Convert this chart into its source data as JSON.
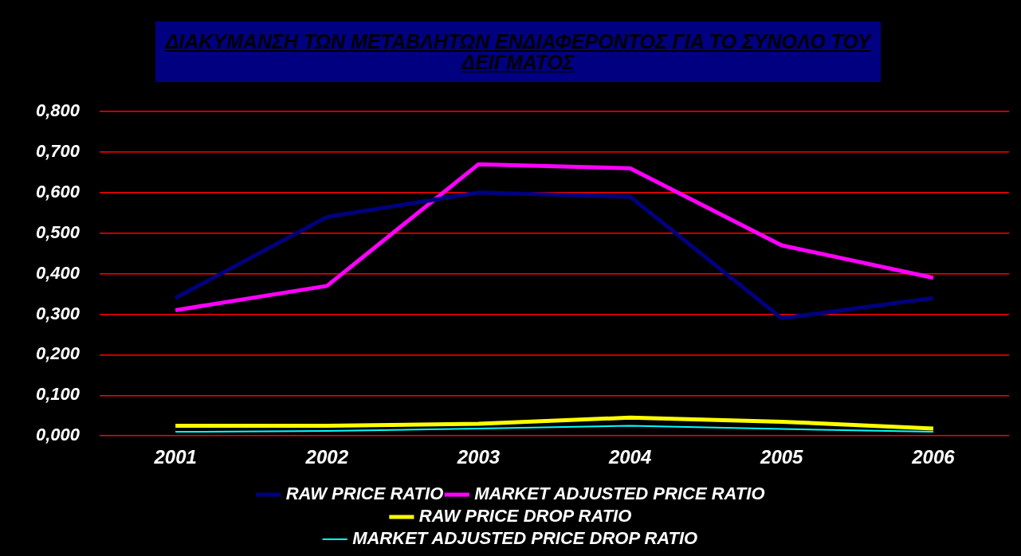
{
  "chart_data": {
    "type": "line",
    "title": "ΔΙΑΚΥΜΑΝΣΗ  ΤΩΝ ΜΕΤΑΒΛΗΤΩΝ ΕΝΔΙΑΦΕΡΟΝΤΟΣ ΓΙΑ ΤΟ ΣΥΝΟΛΟ ΤΟΥ ΔΕΙΓΜΑΤΟΣ",
    "categories": [
      "2001",
      "2002",
      "2003",
      "2004",
      "2005",
      "2006"
    ],
    "series": [
      {
        "name": "RAW PRICE RATIO",
        "color": "#000080",
        "values": [
          0.34,
          0.54,
          0.6,
          0.59,
          0.29,
          0.34
        ]
      },
      {
        "name": "MARKET ADJUSTED PRICE RATIO",
        "color": "#ff00ff",
        "values": [
          0.31,
          0.37,
          0.67,
          0.66,
          0.47,
          0.39
        ]
      },
      {
        "name": "RAW PRICE DROP RATIO",
        "color": "#ffff00",
        "values": [
          0.025,
          0.025,
          0.03,
          0.045,
          0.035,
          0.018
        ]
      },
      {
        "name": "MARKET ADJUSTED PRICE DROP RATIO",
        "color": "#00ffff",
        "values": [
          0.01,
          0.012,
          0.018,
          0.025,
          0.017,
          0.01
        ]
      }
    ],
    "ylim": [
      0,
      0.8
    ],
    "yticks": [
      {
        "value": 0,
        "label": "0,000"
      },
      {
        "value": 0.1,
        "label": "0,100"
      },
      {
        "value": 0.2,
        "label": "0,200"
      },
      {
        "value": 0.3,
        "label": "0,300"
      },
      {
        "value": 0.4,
        "label": "0,400"
      },
      {
        "value": 0.5,
        "label": "0,500"
      },
      {
        "value": 0.6,
        "label": "0,600"
      },
      {
        "value": 0.7,
        "label": "0,700"
      },
      {
        "value": 0.8,
        "label": "0,800"
      }
    ],
    "grid": "y",
    "legend": "bottom",
    "marker": "none",
    "line_style": "solid"
  }
}
